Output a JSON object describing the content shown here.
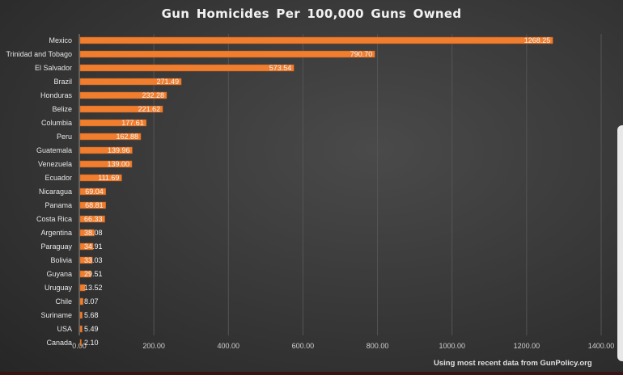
{
  "chart_data": {
    "type": "bar",
    "orientation": "horizontal",
    "title": "Gun Homicides  Per 100,000 Guns Owned",
    "xlabel": "",
    "ylabel": "",
    "xlim": [
      0,
      1400
    ],
    "x_ticks": [
      "0.00",
      "200.00",
      "400.00",
      "600.00",
      "800.00",
      "1000.00",
      "1200.00",
      "1400.00"
    ],
    "x_tick_values": [
      0,
      200,
      400,
      600,
      800,
      1000,
      1200,
      1400
    ],
    "grid": true,
    "categories": [
      "Mexico",
      "Trinidad and Tobago",
      "El Salvador",
      "Brazil",
      "Honduras",
      "Belize",
      "Columbia",
      "Peru",
      "Guatemala",
      "Venezuela",
      "Ecuador",
      "Nicaragua",
      "Panama",
      "Costa Rica",
      "Argentina",
      "Paraguay",
      "Bolivia",
      "Guyana",
      "Uruguay",
      "Chile",
      "Suriname",
      "USA",
      "Canada"
    ],
    "values": [
      1268.25,
      790.7,
      573.54,
      271.49,
      232.28,
      221.62,
      177.61,
      162.88,
      139.96,
      139.0,
      111.69,
      69.04,
      68.81,
      66.33,
      38.08,
      34.91,
      33.03,
      29.51,
      13.52,
      8.07,
      5.68,
      5.49,
      2.1
    ],
    "data_labels": [
      "1268.25",
      "790.70",
      "573.54",
      "271.49",
      "232.28",
      "221.62",
      "177.61",
      "162.88",
      "139.96",
      "139.00",
      "111.69",
      "69.04",
      "68.81",
      "66.33",
      "38.08",
      "34.91",
      "33.03",
      "29.51",
      "13.52",
      "8.07",
      "5.68",
      "5.49",
      "2.10"
    ],
    "bar_color": "#f07e2e",
    "annotation": "Using most recent data from GunPolicy.org"
  }
}
